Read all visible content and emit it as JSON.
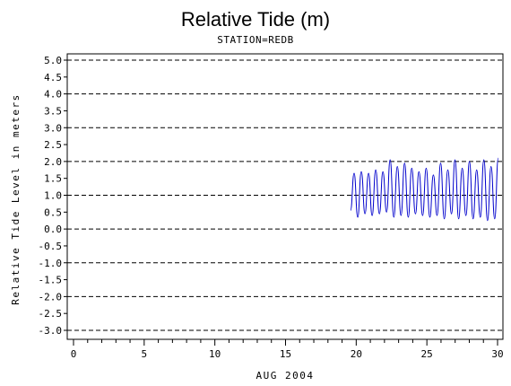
{
  "chart_data": {
    "type": "line",
    "title": "Relative Tide (m)",
    "subtitle": "STATION=REDB",
    "xlabel": "AUG 2004",
    "ylabel": "Relative Tide Level in meters",
    "xlim": [
      0,
      30
    ],
    "ylim": [
      -3,
      5
    ],
    "x_ticks": [
      "0",
      "5",
      "10",
      "15",
      "20",
      "25",
      "30"
    ],
    "y_ticks": [
      "5.0",
      "4.5",
      "4.0",
      "3.5",
      "3.0",
      "2.5",
      "2.0",
      "1.5",
      "1.0",
      "0.5",
      "0.0",
      "-0.5",
      "-1.0",
      "-1.5",
      "-2.0",
      "-2.5",
      "-3.0"
    ],
    "gridlines_y": [
      5,
      4,
      3,
      2,
      1,
      0,
      -1,
      -2,
      -3
    ],
    "grid": "dashed horizontal",
    "line_color": "#0000cc",
    "series": [
      {
        "x": [
          19.6,
          19.85,
          20.11,
          20.36,
          20.62,
          20.87,
          21.13,
          21.38,
          21.64,
          21.89,
          22.15,
          22.4,
          22.66,
          22.91,
          23.17,
          23.42,
          23.68,
          23.93,
          24.19,
          24.44,
          24.7,
          24.95,
          25.21,
          25.46,
          25.72,
          25.97,
          26.23,
          26.48,
          26.74,
          26.99,
          27.25,
          27.5,
          27.76,
          28.01,
          28.27,
          28.52,
          28.78,
          29.03,
          29.29,
          29.54,
          29.8,
          30.05
        ],
        "y": [
          0.55,
          1.65,
          0.35,
          1.7,
          0.45,
          1.65,
          0.4,
          1.75,
          0.45,
          1.7,
          0.5,
          2.05,
          0.35,
          1.85,
          0.4,
          1.95,
          0.35,
          1.8,
          0.45,
          1.7,
          0.4,
          1.8,
          0.35,
          1.6,
          0.4,
          1.95,
          0.3,
          1.75,
          0.45,
          2.05,
          0.3,
          1.8,
          0.4,
          2.0,
          0.3,
          1.75,
          0.35,
          2.05,
          0.25,
          1.85,
          0.3,
          2.1
        ]
      }
    ]
  }
}
